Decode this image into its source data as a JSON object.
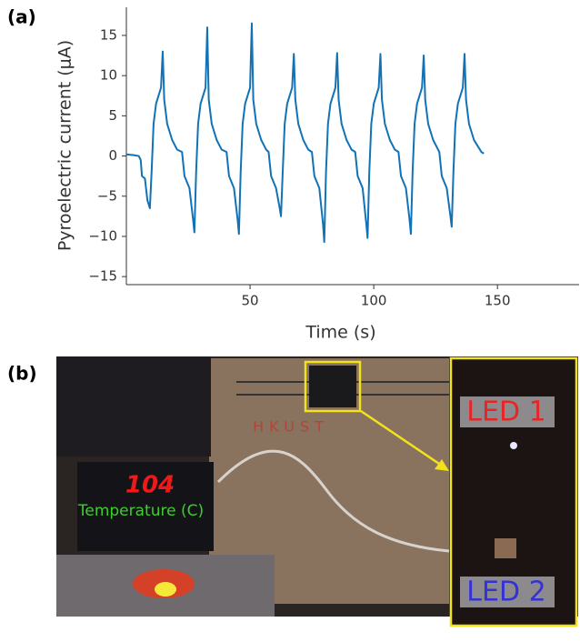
{
  "panel_labels": [
    "(a)",
    "(b)"
  ],
  "chart_data": {
    "type": "line",
    "x_label": "Time (s)",
    "y_label": "Pyroelectric current (μA)",
    "xlim": [
      0,
      183
    ],
    "ylim": [
      -16,
      18.5
    ],
    "xticks": [
      50,
      100,
      150
    ],
    "yticks": [
      {
        "value": -15,
        "label": "−15"
      },
      {
        "value": -10,
        "label": "−10"
      },
      {
        "value": -5,
        "label": "−5"
      },
      0,
      5,
      10,
      15
    ],
    "x": [
      0,
      3,
      5,
      5.8,
      6.3,
      7.5,
      8.5,
      9.5,
      10.2,
      11,
      12,
      14,
      14.7,
      15.3,
      16.5,
      18.5,
      20.5,
      22.5,
      23.5,
      25.5,
      27,
      27.5,
      28.2,
      29,
      30,
      32,
      32.7,
      33.3,
      34.5,
      36.5,
      38.5,
      40.5,
      41.5,
      43.5,
      45,
      45.5,
      46.2,
      47,
      48,
      50,
      50.7,
      51.3,
      52.5,
      54.5,
      56.5,
      57.5,
      58.5,
      60.5,
      62,
      62.5,
      63.2,
      64,
      65,
      67,
      67.7,
      68.3,
      69.5,
      71.5,
      73.5,
      75,
      76,
      78,
      79.5,
      80,
      80.7,
      81.5,
      82.5,
      84.5,
      85.2,
      85.8,
      87,
      89,
      91,
      92.5,
      93.5,
      95.5,
      97,
      97.5,
      98.2,
      99,
      100,
      102,
      102.7,
      103.3,
      104.5,
      106.5,
      108.5,
      110,
      111,
      113,
      114.5,
      115,
      115.7,
      116.5,
      117.5,
      119.5,
      120.2,
      120.8,
      122,
      124,
      126,
      126.5,
      127.5,
      129.5,
      131,
      131.5,
      132.2,
      133,
      134,
      136,
      136.7,
      137.3,
      138.5,
      140.5,
      142.5,
      143.5,
      144.5
    ],
    "series": [
      {
        "name": "Pyroelectric current",
        "color": "#1172b6",
        "values": [
          0.2,
          0.1,
          0,
          -0.5,
          -2.5,
          -2.8,
          -5.5,
          -6.5,
          -2,
          4,
          6.5,
          8.5,
          13,
          7,
          4,
          2,
          0.8,
          0.5,
          -2.5,
          -4,
          -8,
          -9.5,
          -2,
          4,
          6.5,
          8.5,
          16,
          7,
          4,
          2,
          0.8,
          0.5,
          -2.5,
          -4,
          -8,
          -9.7,
          -2,
          4,
          6.5,
          8.5,
          16.5,
          7,
          4,
          2,
          0.8,
          0.5,
          -2.5,
          -4,
          -6.5,
          -7.5,
          -2,
          4,
          6.5,
          8.5,
          12.7,
          7,
          4,
          2,
          0.8,
          0.5,
          -2.5,
          -4,
          -8.5,
          -10.7,
          -2,
          4,
          6.5,
          8.5,
          12.8,
          7,
          4,
          2,
          0.8,
          0.5,
          -2.5,
          -4,
          -8.5,
          -10.2,
          -2,
          4,
          6.5,
          8.5,
          12.7,
          7,
          4,
          2,
          0.8,
          0.5,
          -2.5,
          -4,
          -8,
          -9.7,
          -2,
          4,
          6.5,
          8.5,
          12.5,
          7,
          4,
          2,
          0.8,
          0.5,
          -2.5,
          -4,
          -7.5,
          -8.8,
          -2,
          4,
          6.5,
          8.5,
          12.7,
          7,
          4,
          2,
          1,
          0.5,
          0.3
        ]
      }
    ]
  },
  "photo": {
    "display_reading": "104",
    "display_caption": "Temperature (C)",
    "board_text": "HKUST",
    "inset_labels": [
      "LED 1",
      "LED 2"
    ]
  }
}
